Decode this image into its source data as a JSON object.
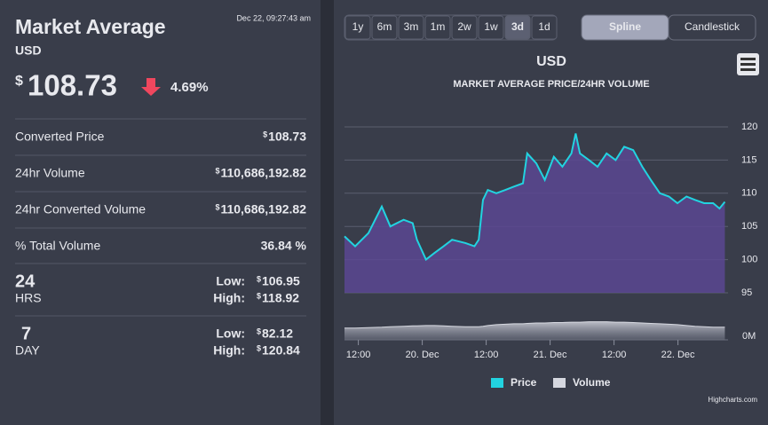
{
  "panel": {
    "title": "Market Average",
    "currency": "USD",
    "timestamp": "Dec 22, 09:27:43 am",
    "currency_symbol": "$",
    "price": "108.73",
    "change": "4.69%",
    "rows": [
      {
        "label": "Converted Price",
        "value": "108.73",
        "currency": true
      },
      {
        "label": "24hr Volume",
        "value": "110,686,192.82",
        "currency": true
      },
      {
        "label": "24hr Converted Volume",
        "value": "110,686,192.82",
        "currency": true
      },
      {
        "label": "% Total Volume",
        "value": "36.84 %",
        "currency": false
      }
    ],
    "low_label": "Low:",
    "high_label": "High:",
    "ranges": [
      {
        "period": "24",
        "unit": "HRS",
        "low": "106.95",
        "high": "118.92"
      },
      {
        "period": "7",
        "unit": "DAY",
        "low": "82.12",
        "high": "120.84"
      }
    ]
  },
  "toolbar": {
    "range_buttons": [
      "1y",
      "6m",
      "3m",
      "1m",
      "2w",
      "1w",
      "3d",
      "1d"
    ],
    "selected_range": "3d",
    "chart_types": [
      "Spline",
      "Candlestick"
    ],
    "selected_chart_type": "Spline"
  },
  "chart_data": {
    "type": "area",
    "title": "USD",
    "subtitle": "MARKET AVERAGE PRICE/24HR VOLUME",
    "credits": "Highcharts.com",
    "x": [
      9.4,
      11.4,
      13.9,
      16.4,
      18,
      20.5,
      22.2,
      23,
      24.7,
      26.3,
      28,
      29.6,
      32.1,
      33.8,
      34.6,
      35.4,
      36.3,
      37.9,
      39.6,
      41.2,
      42.9,
      43.7,
      45.4,
      47,
      48.7,
      50.3,
      52,
      52.8,
      53.6,
      55.3,
      56.9,
      58.6,
      60.3,
      61.9,
      63.6,
      65.3,
      66.9,
      68.6,
      70.3,
      71.9,
      73.6,
      75.2,
      76.9,
      78.6,
      79.8,
      80.8
    ],
    "xlim": [
      9.4,
      81.4
    ],
    "xticks": [
      {
        "value": 12,
        "label": "12:00"
      },
      {
        "value": 24,
        "label": "20. Dec"
      },
      {
        "value": 36,
        "label": "12:00"
      },
      {
        "value": 48,
        "label": "21. Dec"
      },
      {
        "value": 60,
        "label": "12:00"
      },
      {
        "value": 72,
        "label": "22. Dec"
      }
    ],
    "ylim": [
      95,
      120
    ],
    "yticks": [
      95,
      100,
      105,
      110,
      115,
      120
    ],
    "y2lim": [
      0,
      80
    ],
    "y2ticks": [
      {
        "value": 0,
        "label": "0M"
      }
    ],
    "grid": true,
    "series": [
      {
        "name": "Price",
        "color": "#22d3e0",
        "fill": "#5a4692",
        "values": [
          103.5,
          102,
          104,
          108,
          105,
          106,
          105.5,
          103,
          100,
          101,
          102,
          103,
          102.5,
          102,
          103,
          109,
          110.5,
          110,
          110.5,
          111,
          111.5,
          116,
          114.5,
          112,
          115.5,
          114,
          116,
          119,
          116,
          115,
          114,
          116,
          115,
          117,
          116.5,
          114,
          112,
          110,
          109.5,
          108.5,
          109.5,
          109,
          108.5,
          108.5,
          107.7,
          108.7
        ]
      },
      {
        "name": "Volume",
        "color": "#d5d7df",
        "axis": "y2",
        "values": [
          28,
          28,
          29,
          30,
          31,
          32,
          33,
          33,
          34,
          34,
          33,
          32,
          31,
          31,
          31,
          32,
          34,
          36,
          37,
          38,
          38,
          39,
          40,
          40,
          41,
          41,
          42,
          42,
          42,
          43,
          43,
          43,
          42,
          42,
          41,
          40,
          39,
          38,
          37,
          36,
          34,
          32,
          31,
          30,
          30,
          30
        ]
      }
    ]
  }
}
